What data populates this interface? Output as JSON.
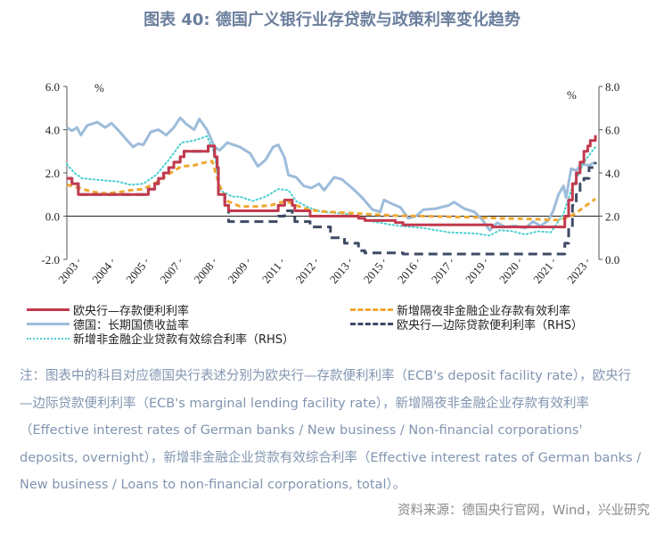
{
  "title": "图表 40: 德国广义银行业存贷款与政策利率变化趋势",
  "chart_data": {
    "type": "line",
    "left_axis": {
      "unit": "%",
      "range": [
        -2,
        6
      ],
      "ticks": [
        "-2.0",
        "0.0",
        "2.0",
        "4.0",
        "6.0"
      ]
    },
    "right_axis": {
      "unit": "%",
      "range": [
        0,
        8
      ],
      "ticks": [
        "0.0",
        "2.0",
        "4.0",
        "6.0",
        "8.0"
      ]
    },
    "x_range": [
      2003.0,
      2023.75
    ],
    "x_tick_labels": [
      "2003",
      "2004",
      "2005",
      "2007",
      "2008",
      "2009",
      "2011",
      "2012",
      "2013",
      "2015",
      "2016",
      "2017",
      "2019",
      "2020",
      "2021",
      "2023"
    ],
    "series": [
      {
        "name": "欧央行—存款便利利率",
        "axis": "left",
        "color": "#c23a4e",
        "style": "solid",
        "step": true,
        "points": [
          [
            2003.0,
            1.75
          ],
          [
            2003.2,
            1.5
          ],
          [
            2003.45,
            1.0
          ],
          [
            2005.95,
            1.0
          ],
          [
            2006.2,
            1.25
          ],
          [
            2006.45,
            1.5
          ],
          [
            2006.6,
            1.75
          ],
          [
            2006.8,
            2.0
          ],
          [
            2007.0,
            2.25
          ],
          [
            2007.2,
            2.5
          ],
          [
            2007.45,
            2.75
          ],
          [
            2007.6,
            3.0
          ],
          [
            2008.55,
            3.25
          ],
          [
            2008.8,
            2.75
          ],
          [
            2008.9,
            2.25
          ],
          [
            2008.95,
            1.0
          ],
          [
            2009.2,
            0.5
          ],
          [
            2009.35,
            0.25
          ],
          [
            2011.3,
            0.5
          ],
          [
            2011.55,
            0.75
          ],
          [
            2011.85,
            0.5
          ],
          [
            2011.95,
            0.25
          ],
          [
            2012.55,
            0.0
          ],
          [
            2014.45,
            -0.1
          ],
          [
            2014.7,
            -0.2
          ],
          [
            2015.9,
            -0.3
          ],
          [
            2016.2,
            -0.4
          ],
          [
            2019.7,
            -0.5
          ],
          [
            2022.55,
            0.0
          ],
          [
            2022.7,
            0.75
          ],
          [
            2022.85,
            1.5
          ],
          [
            2023.0,
            2.0
          ],
          [
            2023.15,
            2.5
          ],
          [
            2023.3,
            3.0
          ],
          [
            2023.45,
            3.25
          ],
          [
            2023.55,
            3.5
          ],
          [
            2023.75,
            3.75
          ]
        ]
      },
      {
        "name": "新增隔夜非金融企业存款有效利率",
        "axis": "left",
        "color": "#f0a732",
        "style": "dashed",
        "step": false,
        "points": [
          [
            2003.0,
            1.45
          ],
          [
            2003.5,
            1.3
          ],
          [
            2004.0,
            1.12
          ],
          [
            2004.5,
            1.05
          ],
          [
            2005.0,
            1.1
          ],
          [
            2005.5,
            1.2
          ],
          [
            2006.0,
            1.25
          ],
          [
            2006.5,
            1.55
          ],
          [
            2007.0,
            1.95
          ],
          [
            2007.5,
            2.3
          ],
          [
            2008.0,
            2.35
          ],
          [
            2008.3,
            2.45
          ],
          [
            2008.7,
            2.55
          ],
          [
            2009.0,
            1.4
          ],
          [
            2009.3,
            0.7
          ],
          [
            2009.8,
            0.45
          ],
          [
            2010.5,
            0.45
          ],
          [
            2011.0,
            0.5
          ],
          [
            2011.6,
            0.7
          ],
          [
            2012.0,
            0.5
          ],
          [
            2012.5,
            0.3
          ],
          [
            2013.0,
            0.22
          ],
          [
            2014.0,
            0.15
          ],
          [
            2015.0,
            0.08
          ],
          [
            2016.0,
            0.02
          ],
          [
            2017.0,
            0.0
          ],
          [
            2018.0,
            -0.03
          ],
          [
            2019.0,
            -0.05
          ],
          [
            2020.0,
            -0.1
          ],
          [
            2021.0,
            -0.12
          ],
          [
            2022.3,
            -0.18
          ],
          [
            2022.7,
            -0.05
          ],
          [
            2023.0,
            0.15
          ],
          [
            2023.4,
            0.5
          ],
          [
            2023.75,
            0.8
          ]
        ]
      },
      {
        "name": "德国：长期国债收益率",
        "axis": "left",
        "color": "#9dbcda",
        "style": "solid",
        "step": false,
        "points": [
          [
            2003.0,
            4.1
          ],
          [
            2003.2,
            3.95
          ],
          [
            2003.4,
            4.1
          ],
          [
            2003.55,
            3.75
          ],
          [
            2003.8,
            4.2
          ],
          [
            2004.2,
            4.35
          ],
          [
            2004.5,
            4.1
          ],
          [
            2004.75,
            4.3
          ],
          [
            2005.0,
            4.0
          ],
          [
            2005.3,
            3.6
          ],
          [
            2005.6,
            3.2
          ],
          [
            2005.8,
            3.35
          ],
          [
            2006.0,
            3.3
          ],
          [
            2006.3,
            3.9
          ],
          [
            2006.6,
            4.0
          ],
          [
            2006.9,
            3.75
          ],
          [
            2007.2,
            4.1
          ],
          [
            2007.45,
            4.55
          ],
          [
            2007.7,
            4.25
          ],
          [
            2008.0,
            4.0
          ],
          [
            2008.2,
            4.5
          ],
          [
            2008.5,
            4.0
          ],
          [
            2008.8,
            3.2
          ],
          [
            2009.0,
            3.05
          ],
          [
            2009.3,
            3.4
          ],
          [
            2009.8,
            3.2
          ],
          [
            2010.2,
            2.9
          ],
          [
            2010.5,
            2.3
          ],
          [
            2010.8,
            2.6
          ],
          [
            2011.1,
            3.2
          ],
          [
            2011.3,
            3.3
          ],
          [
            2011.55,
            2.7
          ],
          [
            2011.7,
            1.9
          ],
          [
            2012.0,
            1.8
          ],
          [
            2012.3,
            1.4
          ],
          [
            2012.6,
            1.3
          ],
          [
            2012.9,
            1.5
          ],
          [
            2013.1,
            1.2
          ],
          [
            2013.5,
            1.8
          ],
          [
            2013.8,
            1.7
          ],
          [
            2014.2,
            1.3
          ],
          [
            2014.6,
            0.85
          ],
          [
            2015.0,
            0.3
          ],
          [
            2015.3,
            0.2
          ],
          [
            2015.45,
            0.75
          ],
          [
            2015.8,
            0.55
          ],
          [
            2016.1,
            0.4
          ],
          [
            2016.4,
            -0.1
          ],
          [
            2016.7,
            0.0
          ],
          [
            2017.0,
            0.3
          ],
          [
            2017.5,
            0.35
          ],
          [
            2018.0,
            0.5
          ],
          [
            2018.2,
            0.65
          ],
          [
            2018.6,
            0.35
          ],
          [
            2019.0,
            0.2
          ],
          [
            2019.3,
            -0.15
          ],
          [
            2019.6,
            -0.65
          ],
          [
            2019.9,
            -0.3
          ],
          [
            2020.2,
            -0.5
          ],
          [
            2020.6,
            -0.45
          ],
          [
            2021.0,
            -0.55
          ],
          [
            2021.3,
            -0.25
          ],
          [
            2021.6,
            -0.45
          ],
          [
            2021.9,
            -0.2
          ],
          [
            2022.1,
            0.25
          ],
          [
            2022.3,
            1.0
          ],
          [
            2022.5,
            1.4
          ],
          [
            2022.6,
            0.85
          ],
          [
            2022.8,
            2.2
          ],
          [
            2023.0,
            2.1
          ],
          [
            2023.2,
            2.4
          ],
          [
            2023.5,
            2.35
          ],
          [
            2023.75,
            2.5
          ]
        ]
      },
      {
        "name": "欧央行—边际贷款便利利率（RHS）",
        "axis": "right",
        "color": "#3e4b66",
        "style": "dashed",
        "step": true,
        "points": [
          [
            2003.0,
            3.75
          ],
          [
            2003.2,
            3.5
          ],
          [
            2003.45,
            3.0
          ],
          [
            2005.95,
            3.0
          ],
          [
            2006.2,
            3.25
          ],
          [
            2006.45,
            3.5
          ],
          [
            2006.6,
            3.75
          ],
          [
            2006.8,
            4.0
          ],
          [
            2007.0,
            4.25
          ],
          [
            2007.2,
            4.5
          ],
          [
            2007.45,
            4.75
          ],
          [
            2007.6,
            5.0
          ],
          [
            2008.55,
            5.25
          ],
          [
            2008.8,
            4.75
          ],
          [
            2008.9,
            4.25
          ],
          [
            2008.95,
            3.0
          ],
          [
            2009.2,
            2.5
          ],
          [
            2009.35,
            1.75
          ],
          [
            2011.3,
            2.0
          ],
          [
            2011.55,
            2.25
          ],
          [
            2011.85,
            2.0
          ],
          [
            2011.95,
            1.75
          ],
          [
            2012.55,
            1.5
          ],
          [
            2013.35,
            1.0
          ],
          [
            2013.9,
            0.75
          ],
          [
            2014.45,
            0.4
          ],
          [
            2014.7,
            0.3
          ],
          [
            2016.2,
            0.25
          ],
          [
            2022.55,
            0.75
          ],
          [
            2022.7,
            1.5
          ],
          [
            2022.85,
            2.5
          ],
          [
            2023.0,
            3.0
          ],
          [
            2023.15,
            3.5
          ],
          [
            2023.3,
            3.75
          ],
          [
            2023.5,
            4.25
          ],
          [
            2023.75,
            4.5
          ]
        ]
      },
      {
        "name": "新增非金融企业贷款有效综合利率（RHS）",
        "axis": "right",
        "color": "#4ccfcf",
        "style": "dotted",
        "step": false,
        "points": [
          [
            2003.0,
            4.4
          ],
          [
            2003.3,
            4.0
          ],
          [
            2003.6,
            3.75
          ],
          [
            2004.0,
            3.7
          ],
          [
            2004.5,
            3.65
          ],
          [
            2005.0,
            3.6
          ],
          [
            2005.5,
            3.45
          ],
          [
            2006.0,
            3.5
          ],
          [
            2006.5,
            3.9
          ],
          [
            2007.0,
            4.6
          ],
          [
            2007.5,
            5.4
          ],
          [
            2008.0,
            5.5
          ],
          [
            2008.5,
            5.7
          ],
          [
            2008.8,
            4.9
          ],
          [
            2009.0,
            3.2
          ],
          [
            2009.5,
            2.9
          ],
          [
            2009.8,
            2.9
          ],
          [
            2010.3,
            2.7
          ],
          [
            2010.8,
            2.9
          ],
          [
            2011.3,
            3.25
          ],
          [
            2011.7,
            3.2
          ],
          [
            2012.0,
            2.7
          ],
          [
            2012.5,
            2.4
          ],
          [
            2013.0,
            2.2
          ],
          [
            2014.0,
            2.1
          ],
          [
            2015.0,
            1.75
          ],
          [
            2016.0,
            1.55
          ],
          [
            2017.0,
            1.45
          ],
          [
            2018.0,
            1.25
          ],
          [
            2019.0,
            1.2
          ],
          [
            2019.6,
            1.1
          ],
          [
            2020.0,
            1.35
          ],
          [
            2020.5,
            1.3
          ],
          [
            2021.0,
            1.15
          ],
          [
            2021.5,
            1.3
          ],
          [
            2022.0,
            1.25
          ],
          [
            2022.5,
            2.1
          ],
          [
            2022.8,
            3.2
          ],
          [
            2023.0,
            3.7
          ],
          [
            2023.3,
            4.5
          ],
          [
            2023.75,
            5.2
          ]
        ]
      }
    ],
    "legend_position": "bottom"
  },
  "note": "注：图表中的科目对应德国央行表述分别为欧央行—存款便利利率（ECB's deposit facility rate），欧央行—边际贷款便利利率（ECB's marginal lending facility rate），新增隔夜非金融企业存款有效利率（Effective interest rates of German banks / New business / Non-financial corporations' deposits, overnight），新增非金融企业贷款有效综合利率（Effective interest rates of German banks / New business / Loans to non-financial corporations, total）。",
  "source": "资料来源：德国央行官网，Wind，兴业研究"
}
